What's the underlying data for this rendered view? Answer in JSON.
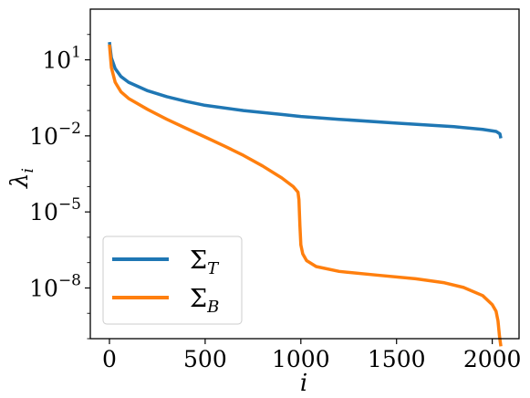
{
  "chart_data": {
    "type": "line",
    "title": "",
    "xlabel": "i",
    "ylabel": "λ",
    "ylabel_subscript": "i",
    "xscale": "linear",
    "yscale": "log",
    "xlim": [
      -100,
      2140
    ],
    "ylim": [
      1e-10,
      1000
    ],
    "x_ticks": [
      0,
      500,
      1000,
      1500,
      2000
    ],
    "x_tick_labels": [
      "0",
      "500",
      "1000",
      "1500",
      "2000"
    ],
    "y_ticks": [
      {
        "value": 10,
        "base": "10",
        "exponent": "1"
      },
      {
        "value": 0.01,
        "base": "10",
        "exponent": "−2"
      },
      {
        "value": 1e-05,
        "base": "10",
        "exponent": "−5"
      },
      {
        "value": 1e-08,
        "base": "10",
        "exponent": "−8"
      }
    ],
    "grid": false,
    "legend": {
      "position": "lower-left"
    },
    "series": [
      {
        "name": "Σ",
        "name_subscript": "T",
        "color": "#1f77b4",
        "points": [
          [
            0,
            50
          ],
          [
            10,
            12
          ],
          [
            30,
            4.5
          ],
          [
            60,
            2.2
          ],
          [
            100,
            1.3
          ],
          [
            200,
            0.6
          ],
          [
            300,
            0.35
          ],
          [
            400,
            0.23
          ],
          [
            500,
            0.16
          ],
          [
            700,
            0.1
          ],
          [
            900,
            0.07
          ],
          [
            1000,
            0.058
          ],
          [
            1200,
            0.045
          ],
          [
            1500,
            0.032
          ],
          [
            1800,
            0.023
          ],
          [
            1950,
            0.018
          ],
          [
            2020,
            0.015
          ],
          [
            2040,
            0.012
          ],
          [
            2045,
            0.008
          ]
        ]
      },
      {
        "name": "Σ",
        "name_subscript": "B",
        "color": "#ff7f0e",
        "points": [
          [
            0,
            40
          ],
          [
            10,
            5
          ],
          [
            30,
            1.3
          ],
          [
            60,
            0.55
          ],
          [
            100,
            0.3
          ],
          [
            200,
            0.11
          ],
          [
            300,
            0.045
          ],
          [
            400,
            0.02
          ],
          [
            500,
            0.009
          ],
          [
            600,
            0.004
          ],
          [
            700,
            0.0017
          ],
          [
            800,
            0.00065
          ],
          [
            900,
            0.00022
          ],
          [
            960,
            0.0001
          ],
          [
            985,
            6e-05
          ],
          [
            990,
            3e-05
          ],
          [
            995,
            3e-06
          ],
          [
            1000,
            5e-07
          ],
          [
            1010,
            2.2e-07
          ],
          [
            1030,
            1.2e-07
          ],
          [
            1080,
            7e-08
          ],
          [
            1200,
            4.5e-08
          ],
          [
            1400,
            3.2e-08
          ],
          [
            1600,
            2.3e-08
          ],
          [
            1750,
            1.6e-08
          ],
          [
            1850,
            1.05e-08
          ],
          [
            1950,
            5e-09
          ],
          [
            2000,
            2.2e-09
          ],
          [
            2020,
            1.2e-09
          ],
          [
            2030,
            5e-10
          ],
          [
            2038,
            1.2e-10
          ],
          [
            2045,
            5e-11
          ]
        ]
      }
    ]
  }
}
